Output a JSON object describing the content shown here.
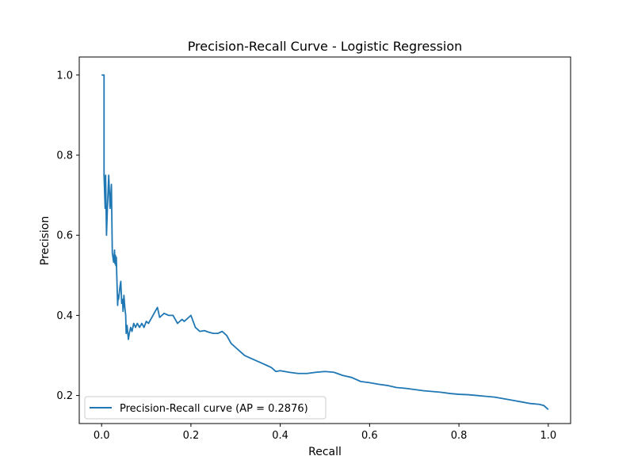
{
  "chart_data": {
    "type": "line",
    "title": "Precision-Recall Curve - Logistic Regression",
    "xlabel": "Recall",
    "ylabel": "Precision",
    "xlim": [
      -0.05,
      1.05
    ],
    "ylim": [
      0.13,
      1.045
    ],
    "xticks": [
      0.0,
      0.2,
      0.4,
      0.6,
      0.8,
      1.0
    ],
    "yticks": [
      0.2,
      0.4,
      0.6,
      0.8,
      1.0
    ],
    "xtick_labels": [
      "0.0",
      "0.2",
      "0.4",
      "0.6",
      "0.8",
      "1.0"
    ],
    "ytick_labels": [
      "0.2",
      "0.4",
      "0.6",
      "0.8",
      "1.0"
    ],
    "grid": false,
    "legend_position": "lower-left",
    "series": [
      {
        "name": "Precision-Recall curve (AP = 0.2876)",
        "color": "#1f77b4",
        "x": [
          0.0,
          0.0055,
          0.0055,
          0.008,
          0.009,
          0.011,
          0.013,
          0.016,
          0.019,
          0.022,
          0.024,
          0.027,
          0.029,
          0.03,
          0.031,
          0.032,
          0.033,
          0.034,
          0.036,
          0.037,
          0.038,
          0.04,
          0.041,
          0.043,
          0.045,
          0.047,
          0.048,
          0.05,
          0.052,
          0.054,
          0.055,
          0.057,
          0.06,
          0.062,
          0.065,
          0.068,
          0.072,
          0.076,
          0.08,
          0.085,
          0.09,
          0.095,
          0.1,
          0.105,
          0.11,
          0.115,
          0.12,
          0.125,
          0.13,
          0.135,
          0.14,
          0.15,
          0.16,
          0.17,
          0.18,
          0.185,
          0.19,
          0.2,
          0.21,
          0.22,
          0.23,
          0.24,
          0.25,
          0.26,
          0.27,
          0.28,
          0.29,
          0.3,
          0.31,
          0.32,
          0.33,
          0.34,
          0.35,
          0.36,
          0.37,
          0.38,
          0.39,
          0.4,
          0.42,
          0.44,
          0.46,
          0.48,
          0.5,
          0.52,
          0.54,
          0.56,
          0.58,
          0.6,
          0.62,
          0.64,
          0.66,
          0.68,
          0.7,
          0.72,
          0.74,
          0.76,
          0.78,
          0.8,
          0.82,
          0.84,
          0.86,
          0.88,
          0.9,
          0.92,
          0.94,
          0.96,
          0.98,
          0.99,
          1.0
        ],
        "y": [
          1.0,
          1.0,
          0.75,
          0.667,
          0.75,
          0.6,
          0.667,
          0.75,
          0.667,
          0.727,
          0.556,
          0.533,
          0.563,
          0.529,
          0.55,
          0.524,
          0.545,
          0.5,
          0.425,
          0.45,
          0.44,
          0.46,
          0.47,
          0.485,
          0.43,
          0.44,
          0.41,
          0.45,
          0.42,
          0.4,
          0.355,
          0.375,
          0.34,
          0.355,
          0.37,
          0.36,
          0.38,
          0.37,
          0.38,
          0.37,
          0.38,
          0.37,
          0.385,
          0.38,
          0.39,
          0.4,
          0.41,
          0.42,
          0.395,
          0.4,
          0.405,
          0.4,
          0.4,
          0.38,
          0.39,
          0.385,
          0.39,
          0.4,
          0.37,
          0.36,
          0.362,
          0.358,
          0.355,
          0.355,
          0.36,
          0.35,
          0.33,
          0.32,
          0.31,
          0.3,
          0.295,
          0.29,
          0.285,
          0.28,
          0.275,
          0.27,
          0.26,
          0.262,
          0.258,
          0.255,
          0.255,
          0.258,
          0.26,
          0.258,
          0.25,
          0.245,
          0.235,
          0.232,
          0.228,
          0.225,
          0.22,
          0.218,
          0.215,
          0.212,
          0.21,
          0.208,
          0.205,
          0.203,
          0.202,
          0.2,
          0.198,
          0.196,
          0.192,
          0.188,
          0.184,
          0.18,
          0.178,
          0.175,
          0.165
        ]
      }
    ]
  }
}
